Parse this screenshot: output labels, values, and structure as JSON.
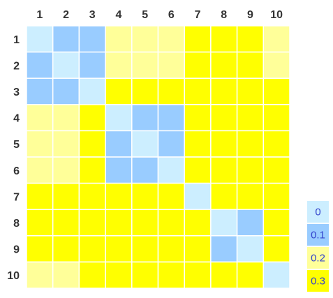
{
  "chart_data": {
    "type": "heatmap",
    "title": "",
    "x_labels": [
      "1",
      "2",
      "3",
      "4",
      "5",
      "6",
      "7",
      "8",
      "9",
      "10"
    ],
    "y_labels": [
      "1",
      "2",
      "3",
      "4",
      "5",
      "6",
      "7",
      "8",
      "9",
      "10"
    ],
    "values": [
      [
        0,
        0.1,
        0.1,
        0.2,
        0.2,
        0.2,
        0.3,
        0.3,
        0.3,
        0.2
      ],
      [
        0.1,
        0,
        0.1,
        0.2,
        0.2,
        0.2,
        0.3,
        0.3,
        0.3,
        0.2
      ],
      [
        0.1,
        0.1,
        0,
        0.3,
        0.3,
        0.3,
        0.3,
        0.3,
        0.3,
        0.3
      ],
      [
        0.2,
        0.2,
        0.3,
        0,
        0.1,
        0.1,
        0.3,
        0.3,
        0.3,
        0.3
      ],
      [
        0.2,
        0.2,
        0.3,
        0.1,
        0,
        0.1,
        0.3,
        0.3,
        0.3,
        0.3
      ],
      [
        0.2,
        0.2,
        0.3,
        0.1,
        0.1,
        0,
        0.3,
        0.3,
        0.3,
        0.3
      ],
      [
        0.3,
        0.3,
        0.3,
        0.3,
        0.3,
        0.3,
        0,
        0.3,
        0.3,
        0.3
      ],
      [
        0.3,
        0.3,
        0.3,
        0.3,
        0.3,
        0.3,
        0.3,
        0,
        0.1,
        0.3
      ],
      [
        0.3,
        0.3,
        0.3,
        0.3,
        0.3,
        0.3,
        0.3,
        0.1,
        0,
        0.3
      ],
      [
        0.2,
        0.2,
        0.3,
        0.3,
        0.3,
        0.3,
        0.3,
        0.3,
        0.3,
        0
      ]
    ],
    "legend": [
      {
        "label": "0",
        "value": 0,
        "color": "#cceeff"
      },
      {
        "label": "0.1",
        "value": 0.1,
        "color": "#99ccff"
      },
      {
        "label": "0.2",
        "value": 0.2,
        "color": "#ffff99"
      },
      {
        "label": "0.3",
        "value": 0.3,
        "color": "#ffff00"
      }
    ],
    "legend_position": "bottom-right",
    "grid": true
  },
  "colors": {
    "cell_border": "#ffffff",
    "label_text": "#333333",
    "legend_text": "#3344cc"
  }
}
